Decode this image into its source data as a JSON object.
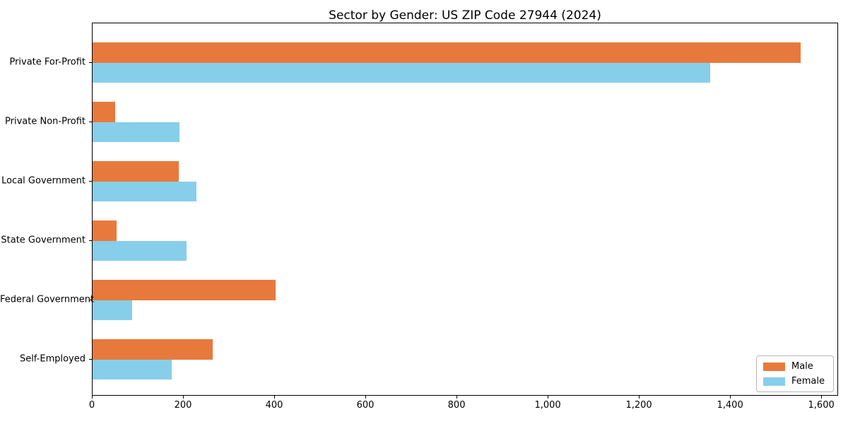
{
  "chart_data": {
    "type": "bar",
    "orientation": "horizontal",
    "title": "Sector by Gender: US ZIP Code 27944 (2024)",
    "categories": [
      "Private For-Profit",
      "Private Non-Profit",
      "Local Government",
      "State Government",
      "Federal Government",
      "Self-Employed"
    ],
    "series": [
      {
        "name": "Male",
        "color": "#e8793d",
        "values": [
          1556,
          50,
          189,
          53,
          403,
          264
        ]
      },
      {
        "name": "Female",
        "color": "#87ceeb",
        "values": [
          1358,
          191,
          228,
          206,
          87,
          174
        ]
      }
    ],
    "xlabel": "",
    "ylabel": "",
    "xlim": [
      0,
      1637
    ],
    "xticks": [
      0,
      200,
      400,
      600,
      800,
      1000,
      1200,
      1400,
      1600
    ],
    "xtick_labels": [
      "0",
      "200",
      "400",
      "600",
      "800",
      "1,000",
      "1,200",
      "1,400",
      "1,600"
    ],
    "grid": false,
    "legend_position": "lower right",
    "background_color": "#ffffff",
    "spine_color": "#000000"
  }
}
